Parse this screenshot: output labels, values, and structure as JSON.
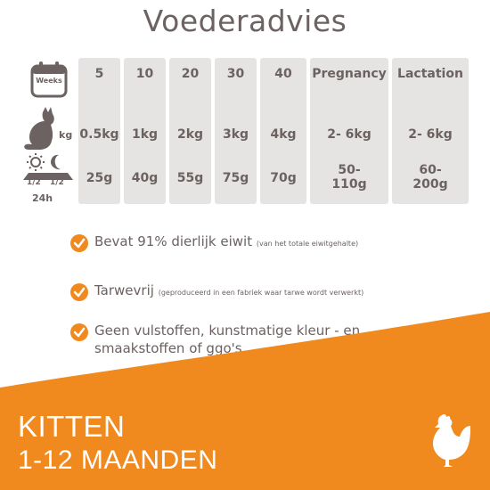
{
  "title": "Voederadvies",
  "icons": {
    "weeks_label": "Weeks",
    "kg_label": "kg",
    "half_left": "1/2",
    "half_right": "1/2",
    "hours_label": "24h"
  },
  "columns": [
    {
      "header": "5",
      "weight": "0.5kg",
      "food": "25g"
    },
    {
      "header": "10",
      "weight": "1kg",
      "food": "40g"
    },
    {
      "header": "20",
      "weight": "2kg",
      "food": "55g"
    },
    {
      "header": "30",
      "weight": "3kg",
      "food": "75g"
    },
    {
      "header": "40",
      "weight": "4kg",
      "food": "70g"
    },
    {
      "header": "Pregnancy",
      "weight": "2- 6kg",
      "food": "50-\n110g"
    },
    {
      "header": "Lactation",
      "weight": "2- 6kg",
      "food": "60-\n200g"
    }
  ],
  "bullets": [
    {
      "main": "Bevat 91% dierlijk eiwit",
      "note": "(van het totale eiwitgehalte)"
    },
    {
      "main": "Tarwevrij",
      "note": "(geproduceerd in een fabriek waar tarwe wordt verwerkt)"
    },
    {
      "main": "Geen vulstoffen, kunstmatige kleur - en smaakstoffen of ggo's",
      "note": ""
    }
  ],
  "banner": {
    "line1": "KITTEN",
    "line2": "1-12 MAANDEN"
  },
  "colors": {
    "accent": "#f08a1f",
    "text": "#6b6261",
    "cell_bg": "#e6e4e3"
  }
}
